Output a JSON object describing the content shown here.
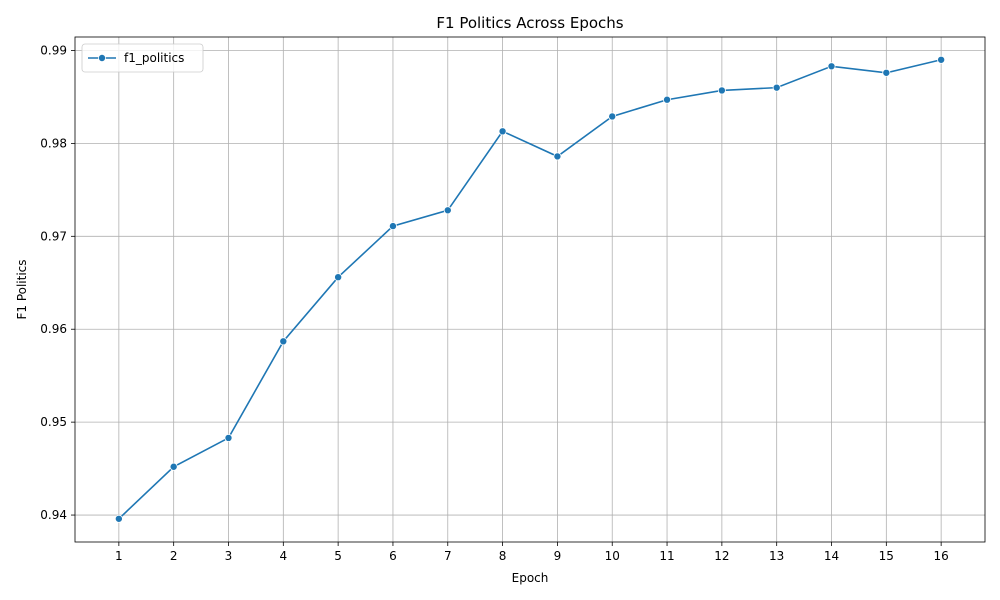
{
  "chart_data": {
    "type": "line",
    "title": "F1 Politics Across Epochs",
    "xlabel": "Epoch",
    "ylabel": "F1 Politics",
    "x": [
      1,
      2,
      3,
      4,
      5,
      6,
      7,
      8,
      9,
      10,
      11,
      12,
      13,
      14,
      15,
      16
    ],
    "x_ticks": [
      "1",
      "2",
      "3",
      "4",
      "5",
      "6",
      "7",
      "8",
      "9",
      "10",
      "11",
      "12",
      "13",
      "14",
      "15",
      "16"
    ],
    "y_ticks": [
      "0.94",
      "0.95",
      "0.96",
      "0.97",
      "0.98",
      "0.99"
    ],
    "y_tick_values": [
      0.94,
      0.95,
      0.96,
      0.97,
      0.98,
      0.99
    ],
    "xlim": [
      0.2,
      16.8
    ],
    "ylim": [
      0.9371,
      0.99145
    ],
    "grid": true,
    "legend_position": "top-left",
    "series": [
      {
        "name": "f1_politics",
        "color": "#1f77b4",
        "marker": "circle",
        "values": [
          0.9396,
          0.9452,
          0.9483,
          0.9587,
          0.9656,
          0.9711,
          0.9728,
          0.9813,
          0.9786,
          0.9829,
          0.9847,
          0.9857,
          0.986,
          0.9883,
          0.9876,
          0.989
        ]
      }
    ]
  }
}
